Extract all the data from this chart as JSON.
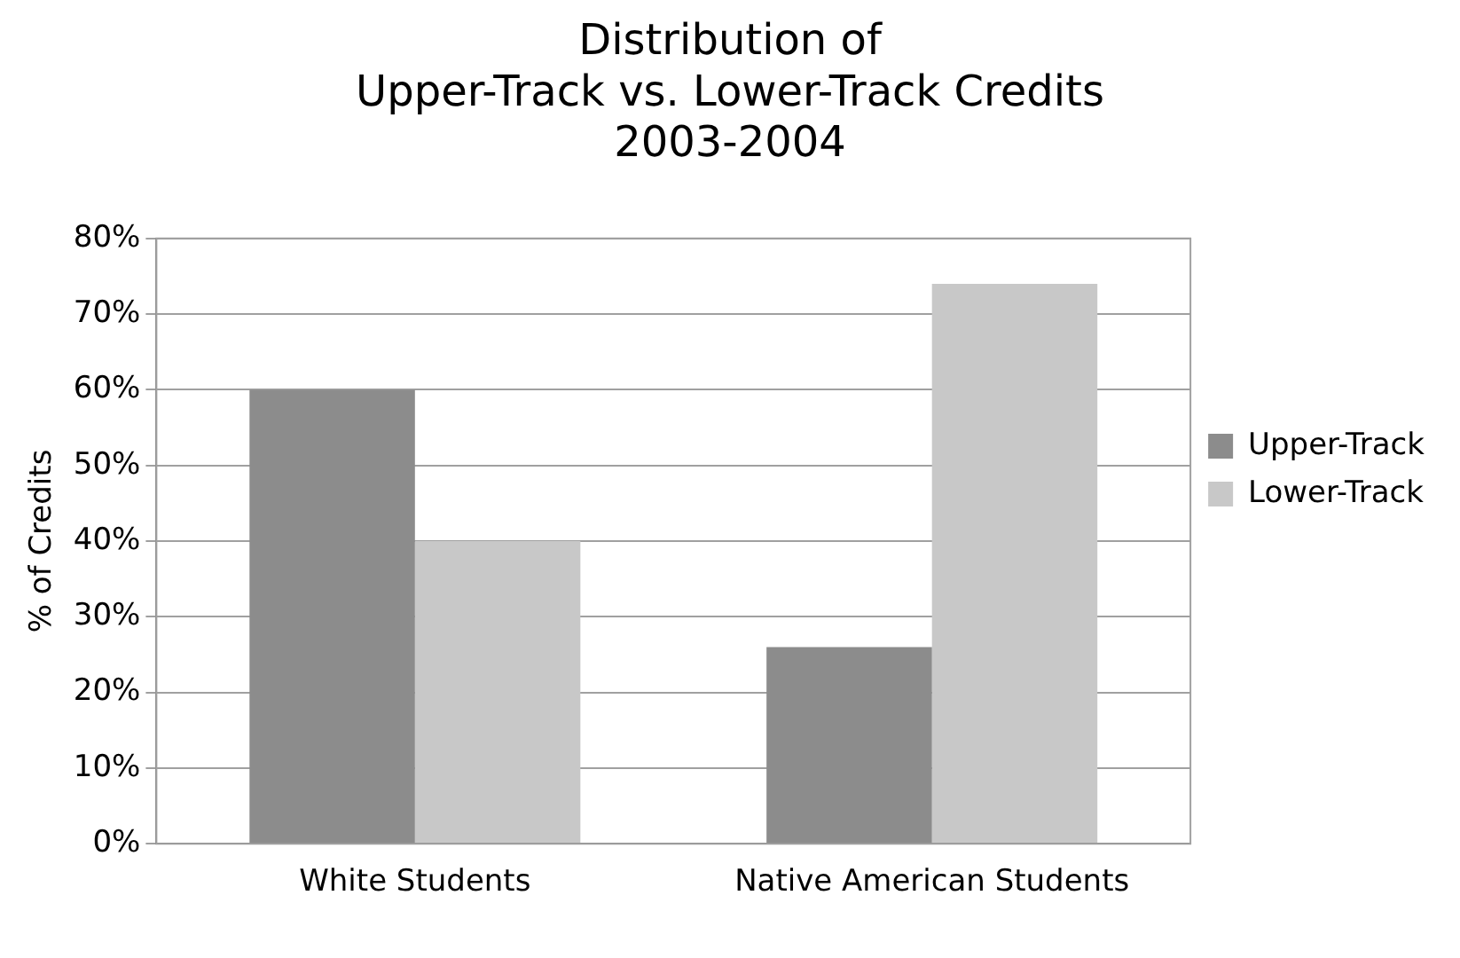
{
  "chart_data": {
    "type": "bar",
    "title": "Distribution of\nUpper-Track vs. Lower-Track Credits\n2003-2004",
    "ylabel": "% of Credits",
    "categories": [
      "White Students",
      "Native American Students"
    ],
    "series": [
      {
        "name": "Upper-Track",
        "color": "#8c8c8c",
        "values": [
          60,
          26
        ]
      },
      {
        "name": "Lower-Track",
        "color": "#c8c8c8",
        "values": [
          40,
          74
        ]
      }
    ],
    "ylim": [
      0,
      80
    ],
    "yticks": [
      {
        "value": 0,
        "label": "0%"
      },
      {
        "value": 10,
        "label": "10%"
      },
      {
        "value": 20,
        "label": "20%"
      },
      {
        "value": 30,
        "label": "30%"
      },
      {
        "value": 40,
        "label": "40%"
      },
      {
        "value": 50,
        "label": "50%"
      },
      {
        "value": 60,
        "label": "60%"
      },
      {
        "value": 70,
        "label": "70%"
      },
      {
        "value": 80,
        "label": "80%"
      }
    ],
    "grid": "y",
    "legend": "right"
  }
}
